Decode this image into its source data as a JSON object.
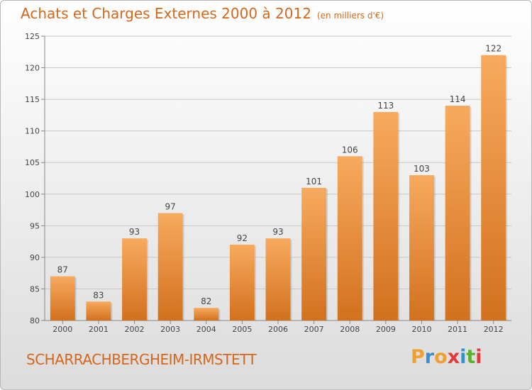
{
  "chart_data": {
    "type": "bar",
    "title": "Achats et Charges Externes 2000 à 2012",
    "unit": "(en milliers d'€)",
    "categories": [
      "2000",
      "2001",
      "2002",
      "2003",
      "2004",
      "2005",
      "2006",
      "2007",
      "2008",
      "2009",
      "2010",
      "2011",
      "2012"
    ],
    "values": [
      87,
      83,
      93,
      97,
      82,
      92,
      93,
      101,
      106,
      113,
      103,
      114,
      122
    ],
    "ylim": [
      80,
      125
    ],
    "yticks": [
      80,
      85,
      90,
      95,
      100,
      105,
      110,
      115,
      120,
      125
    ],
    "grid": true,
    "xlabel": "",
    "ylabel": ""
  },
  "location": "SCHARRACHBERGHEIM-IRMSTETT",
  "logo": {
    "text": "Proxiti",
    "letter_colors": [
      "#f0a030",
      "#3a8fd0",
      "#f0a030",
      "#e03a3a",
      "#3a8fd0",
      "#5ab030",
      "#e03a3a"
    ]
  },
  "colors": {
    "title": "#d4671c",
    "bar_light": "#f6a75a",
    "bar_dark": "#d47420",
    "grid": "#c8c8c8",
    "axis_text": "#444444"
  }
}
